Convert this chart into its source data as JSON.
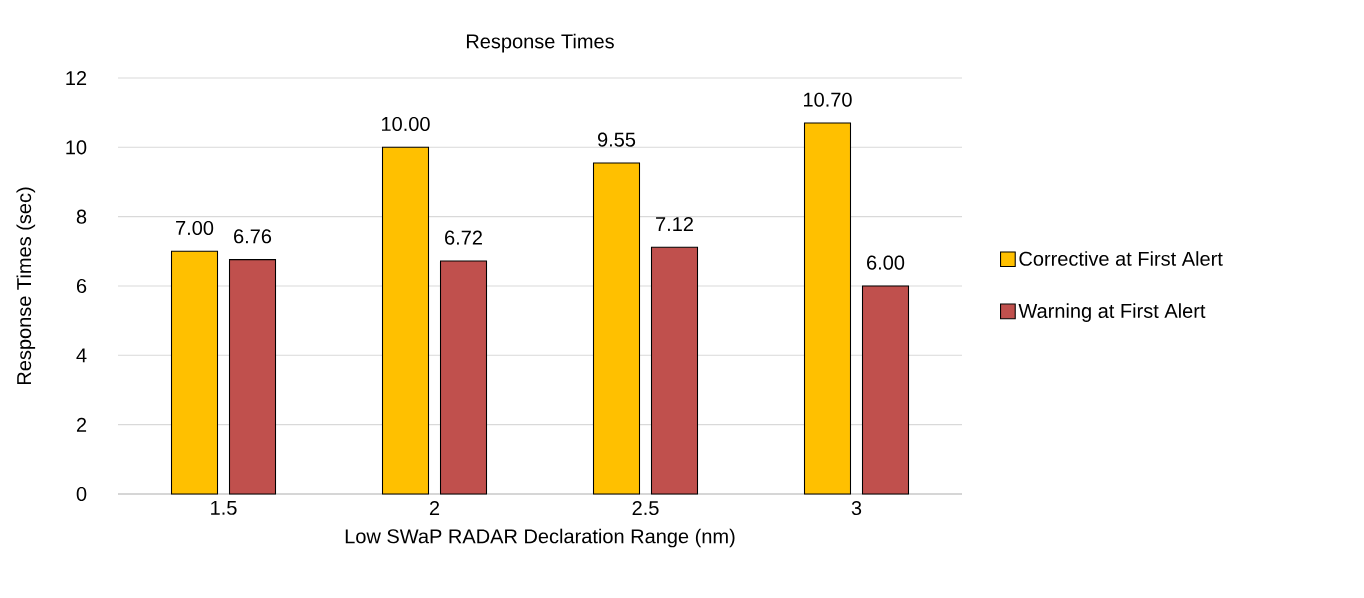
{
  "chart_data": {
    "type": "bar",
    "title": "Response Times",
    "xlabel": "Low SWaP RADAR Declaration Range (nm)",
    "ylabel": "Response Times (sec)",
    "categories": [
      "1.5",
      "2",
      "2.5",
      "3"
    ],
    "series": [
      {
        "name": "Corrective at First Alert",
        "color": "#ffc000",
        "values": [
          7.0,
          10.0,
          9.55,
          10.7
        ],
        "value_labels": [
          "7.00",
          "10.00",
          "9.55",
          "10.70"
        ]
      },
      {
        "name": "Warning at First Alert",
        "color": "#c0504d",
        "values": [
          6.76,
          6.72,
          7.12,
          6.0
        ],
        "value_labels": [
          "6.76",
          "6.72",
          "7.12",
          "6.00"
        ]
      }
    ],
    "ylim": [
      0,
      12
    ],
    "yticks": [
      0,
      2,
      4,
      6,
      8,
      10,
      12
    ],
    "grid": "y",
    "legend": "right"
  }
}
